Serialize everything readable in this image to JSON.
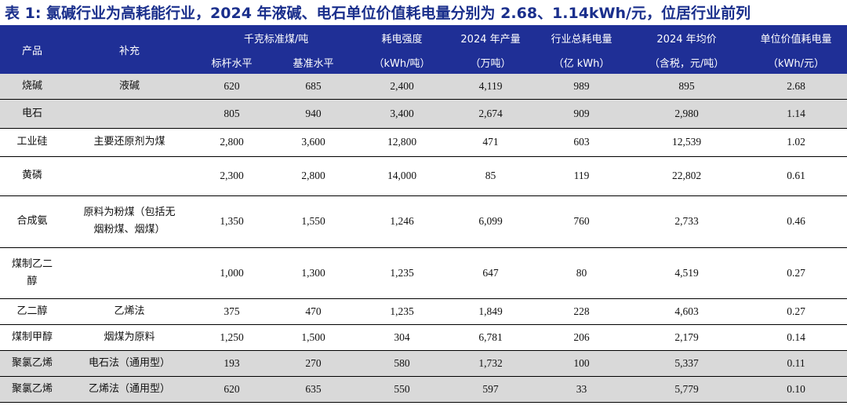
{
  "title": "表 1:  氯碱行业为高耗能行业，2024 年液碱、电石单位价值耗电量分别为 2.68、1.14kWh/元，位居行业前列",
  "header": {
    "product": "产品",
    "supplement": "补充",
    "coal_group": "千克标准煤/吨",
    "benchmark": "标杆水平",
    "baseline": "基准水平",
    "power_intensity": "耗电强度",
    "power_intensity_unit": "（kWh/吨）",
    "output_2024": "2024 年产量",
    "output_unit": "（万吨）",
    "total_power": "行业总耗电量",
    "total_power_unit": "（亿 kWh）",
    "price_2024": "2024 年均价",
    "price_unit": "（含税，元/吨）",
    "unit_value_power": "单位价值耗电量",
    "unit_value_power_unit": "（kWh/元）"
  },
  "rows": [
    {
      "product": "烧碱",
      "supplement": "液碱",
      "benchmark": "620",
      "baseline": "685",
      "intensity": "2,400",
      "output": "4,119",
      "total": "989",
      "price": "895",
      "unit": "2.68"
    },
    {
      "product": "电石",
      "supplement": "",
      "benchmark": "805",
      "baseline": "940",
      "intensity": "3,400",
      "output": "2,674",
      "total": "909",
      "price": "2,980",
      "unit": "1.14"
    },
    {
      "product": "工业硅",
      "supplement": "主要还原剂为煤",
      "benchmark": "2,800",
      "baseline": "3,600",
      "intensity": "12,800",
      "output": "471",
      "total": "603",
      "price": "12,539",
      "unit": "1.02"
    },
    {
      "product": "黄磷",
      "supplement": "",
      "benchmark": "2,300",
      "baseline": "2,800",
      "intensity": "14,000",
      "output": "85",
      "total": "119",
      "price": "22,802",
      "unit": "0.61"
    },
    {
      "product": "合成氨",
      "supplement_l1": "原料为粉煤（包括无",
      "supplement_l2": "烟粉煤、烟煤）",
      "benchmark": "1,350",
      "baseline": "1,550",
      "intensity": "1,246",
      "output": "6,099",
      "total": "760",
      "price": "2,733",
      "unit": "0.46"
    },
    {
      "product_l1": "煤制乙二",
      "product_l2": "醇",
      "supplement": "",
      "benchmark": "1,000",
      "baseline": "1,300",
      "intensity": "1,235",
      "output": "647",
      "total": "80",
      "price": "4,519",
      "unit": "0.27"
    },
    {
      "product": "乙二醇",
      "supplement": "乙烯法",
      "benchmark": "375",
      "baseline": "470",
      "intensity": "1,235",
      "output": "1,849",
      "total": "228",
      "price": "4,603",
      "unit": "0.27"
    },
    {
      "product": "煤制甲醇",
      "supplement": "烟煤为原料",
      "benchmark": "1,250",
      "baseline": "1,500",
      "intensity": "304",
      "output": "6,781",
      "total": "206",
      "price": "2,179",
      "unit": "0.14"
    },
    {
      "product": "聚氯乙烯",
      "supplement": "电石法（通用型）",
      "benchmark": "193",
      "baseline": "270",
      "intensity": "580",
      "output": "1,732",
      "total": "100",
      "price": "5,337",
      "unit": "0.11"
    },
    {
      "product": "聚氯乙烯",
      "supplement": "乙烯法（通用型）",
      "benchmark": "620",
      "baseline": "635",
      "intensity": "550",
      "output": "597",
      "total": "33",
      "price": "5,779",
      "unit": "0.10"
    }
  ]
}
